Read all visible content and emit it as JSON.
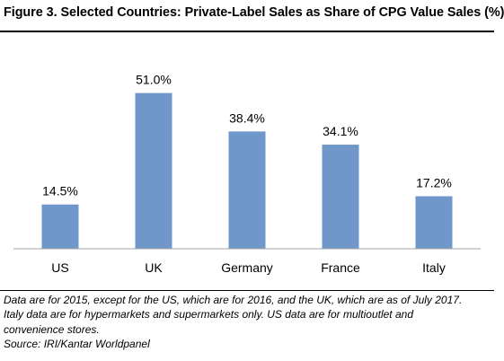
{
  "header": {
    "title": "Figure 3. Selected Countries: Private-Label Sales as Share of CPG Value Sales (%)"
  },
  "chart_data": {
    "type": "bar",
    "categories": [
      "US",
      "UK",
      "Germany",
      "France",
      "Italy"
    ],
    "values": [
      14.5,
      51.0,
      38.4,
      34.1,
      17.2
    ],
    "value_labels": [
      "14.5%",
      "51.0%",
      "38.4%",
      "34.1%",
      "17.2%"
    ],
    "title": "",
    "xlabel": "",
    "ylabel": "",
    "ylim": [
      0,
      60
    ],
    "grid": false,
    "bar_color": "#6f97c9",
    "axis_color": "#a6a6a6"
  },
  "footnotes": {
    "line1": "Data are for 2015, except for the US, which are for 2016, and the UK, which are as of July 2017.",
    "line2": "Italy data are for hypermarkets and supermarkets only. US data are for multioutlet and",
    "line3": "convenience stores.",
    "source": "Source: IRI/Kantar Worldpanel"
  }
}
